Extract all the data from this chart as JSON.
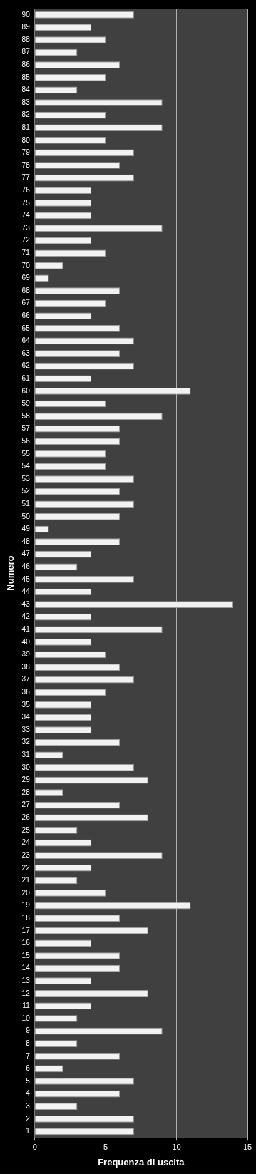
{
  "chart_data": {
    "type": "bar",
    "orientation": "horizontal",
    "xlabel": "Frequenza di uscita",
    "ylabel": "Numero",
    "categories": [
      "90",
      "89",
      "88",
      "87",
      "86",
      "85",
      "84",
      "83",
      "82",
      "81",
      "80",
      "79",
      "78",
      "77",
      "76",
      "75",
      "74",
      "73",
      "72",
      "71",
      "70",
      "69",
      "68",
      "67",
      "66",
      "65",
      "64",
      "63",
      "62",
      "61",
      "60",
      "59",
      "58",
      "57",
      "56",
      "55",
      "54",
      "53",
      "52",
      "51",
      "50",
      "49",
      "48",
      "47",
      "46",
      "45",
      "44",
      "43",
      "42",
      "41",
      "40",
      "39",
      "38",
      "37",
      "36",
      "35",
      "34",
      "33",
      "32",
      "31",
      "30",
      "29",
      "28",
      "27",
      "26",
      "25",
      "24",
      "23",
      "22",
      "21",
      "20",
      "19",
      "18",
      "17",
      "16",
      "15",
      "14",
      "13",
      "12",
      "11",
      "10",
      "9",
      "8",
      "7",
      "6",
      "5",
      "4",
      "3",
      "2",
      "1"
    ],
    "values": [
      7,
      4,
      5,
      3,
      6,
      5,
      3,
      9,
      5,
      9,
      5,
      7,
      6,
      7,
      4,
      4,
      4,
      9,
      4,
      5,
      2,
      1,
      6,
      5,
      4,
      6,
      7,
      6,
      7,
      4,
      11,
      5,
      9,
      6,
      6,
      5,
      5,
      7,
      6,
      7,
      6,
      1,
      6,
      4,
      3,
      7,
      4,
      14,
      4,
      9,
      4,
      5,
      6,
      7,
      5,
      4,
      4,
      4,
      6,
      2,
      7,
      8,
      2,
      6,
      8,
      3,
      4,
      9,
      4,
      3,
      5,
      11,
      6,
      8,
      4,
      6,
      6,
      4,
      8,
      4,
      3,
      9,
      3,
      6,
      2,
      7,
      6,
      3,
      7,
      7
    ],
    "color": "#f2f2f2",
    "xlim": [
      0,
      15
    ],
    "xticks": [
      0,
      5,
      10,
      15
    ],
    "grid": "x"
  }
}
